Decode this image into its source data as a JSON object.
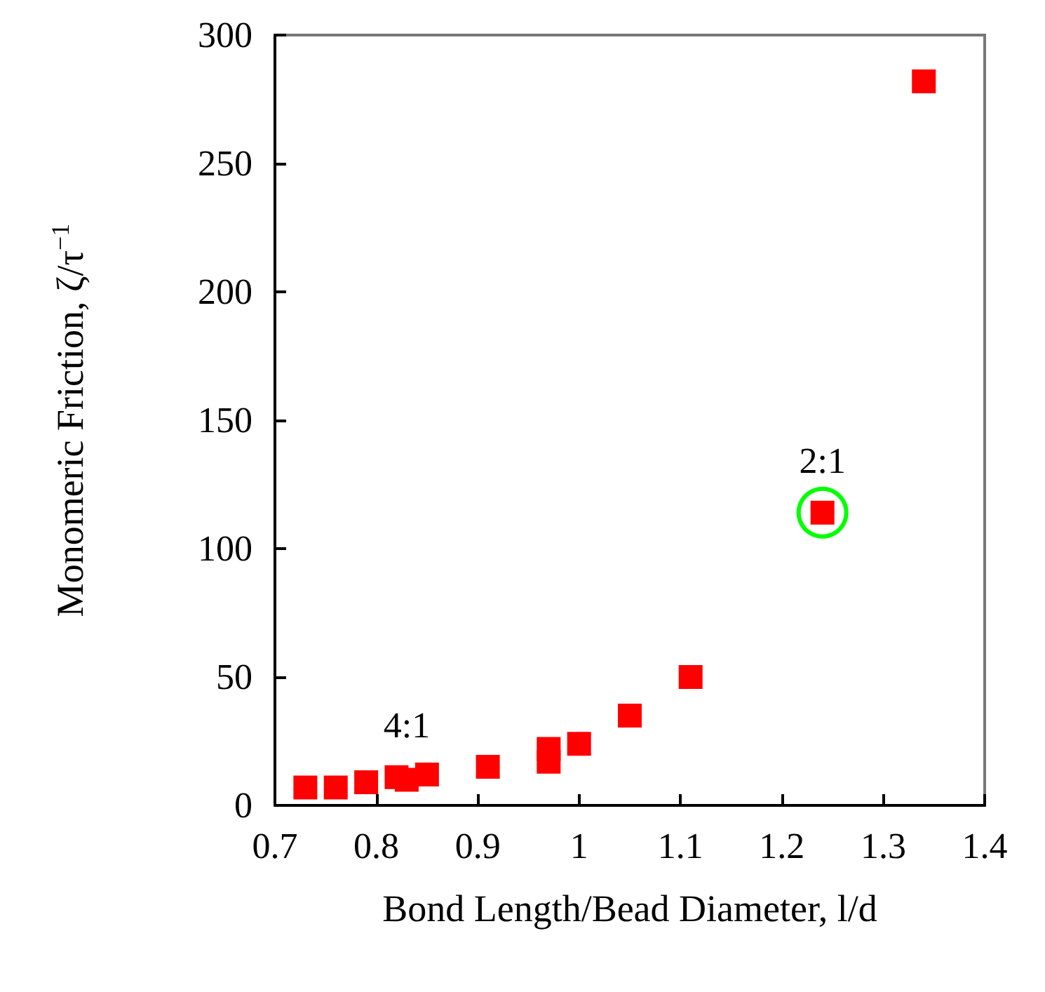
{
  "chart_data": {
    "type": "scatter",
    "xlabel": "Bond Length/Bead Diameter, l/d",
    "ylabel": "Monomeric Friction, ζ/τ$^{−1}$",
    "marker": "square",
    "grid": false,
    "xlim": [
      0.7,
      1.4
    ],
    "xticks": [
      {
        "value": 0.7,
        "label": "0.7"
      },
      {
        "value": 0.8,
        "label": "0.8"
      },
      {
        "value": 0.9,
        "label": "0.9"
      },
      1,
      1.1,
      1.2,
      1.3,
      1.4
    ],
    "ylim": [
      0,
      300
    ],
    "yticks": [
      0,
      50,
      100,
      150,
      200,
      250,
      300
    ],
    "series": [
      {
        "color": "#ff0000",
        "x": [
          0.73,
          0.76,
          0.79,
          0.82,
          0.83,
          0.85,
          0.91,
          0.97,
          0.97,
          1.0,
          1.05,
          1.11,
          1.24,
          1.34
        ],
        "values": [
          7,
          7,
          9,
          11,
          10,
          12,
          15,
          22,
          17,
          24,
          35,
          50,
          114,
          282
        ]
      },
      {
        "color": "#00ff00",
        "marker": "circle",
        "x": [
          1.24
        ],
        "values": [
          114
        ]
      }
    ],
    "annotations": [
      {
        "text": "4:1",
        "x": 0.83,
        "y": 11
      },
      {
        "text": "2:1",
        "x": 1.24,
        "y": 114
      }
    ]
  }
}
